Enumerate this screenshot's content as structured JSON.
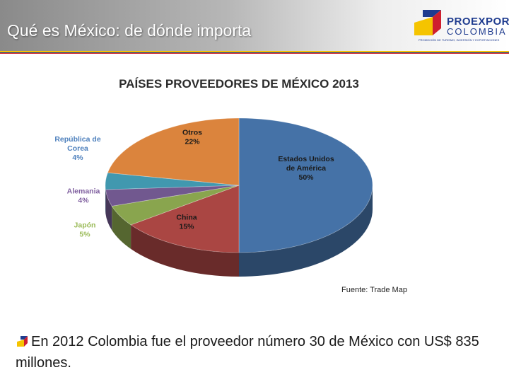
{
  "header": {
    "title": "Qué es México: de dónde importa",
    "logo_name": "PROEXPORT",
    "logo_sub": "COLOMBIA",
    "logo_tagline": "PROMOCIÓN DE TURISMO, INVERSIÓN Y EXPORTACIONES"
  },
  "chart_data": {
    "type": "pie",
    "title": "PAÍSES PROVEEDORES DE MÉXICO 2013",
    "slices": [
      {
        "label": [
          "Estados Unidos",
          "de América"
        ],
        "pct": "50%",
        "value": 50,
        "color": "#4572a7",
        "labelColor": "#1a1a1a"
      },
      {
        "label": [
          "China"
        ],
        "pct": "15%",
        "value": 15,
        "color": "#aa4643",
        "labelColor": "#1a1a1a"
      },
      {
        "label": [
          "Japón"
        ],
        "pct": "5%",
        "value": 5,
        "color": "#89a54e",
        "labelColor": "#9bbb59"
      },
      {
        "label": [
          "Alemania"
        ],
        "pct": "4%",
        "value": 4,
        "color": "#71588f",
        "labelColor": "#7f5f9f"
      },
      {
        "label": [
          "República de",
          "Corea"
        ],
        "pct": "4%",
        "value": 4,
        "color": "#4198af",
        "labelColor": "#4f81bd"
      },
      {
        "label": [
          "Otros"
        ],
        "pct": "22%",
        "value": 22,
        "color": "#db843d",
        "labelColor": "#1a1a1a"
      }
    ],
    "source": "Fuente: Trade Map"
  },
  "body": {
    "text": "En 2012 Colombia fue el proveedor número 30 de México con US$ 835 millones."
  }
}
